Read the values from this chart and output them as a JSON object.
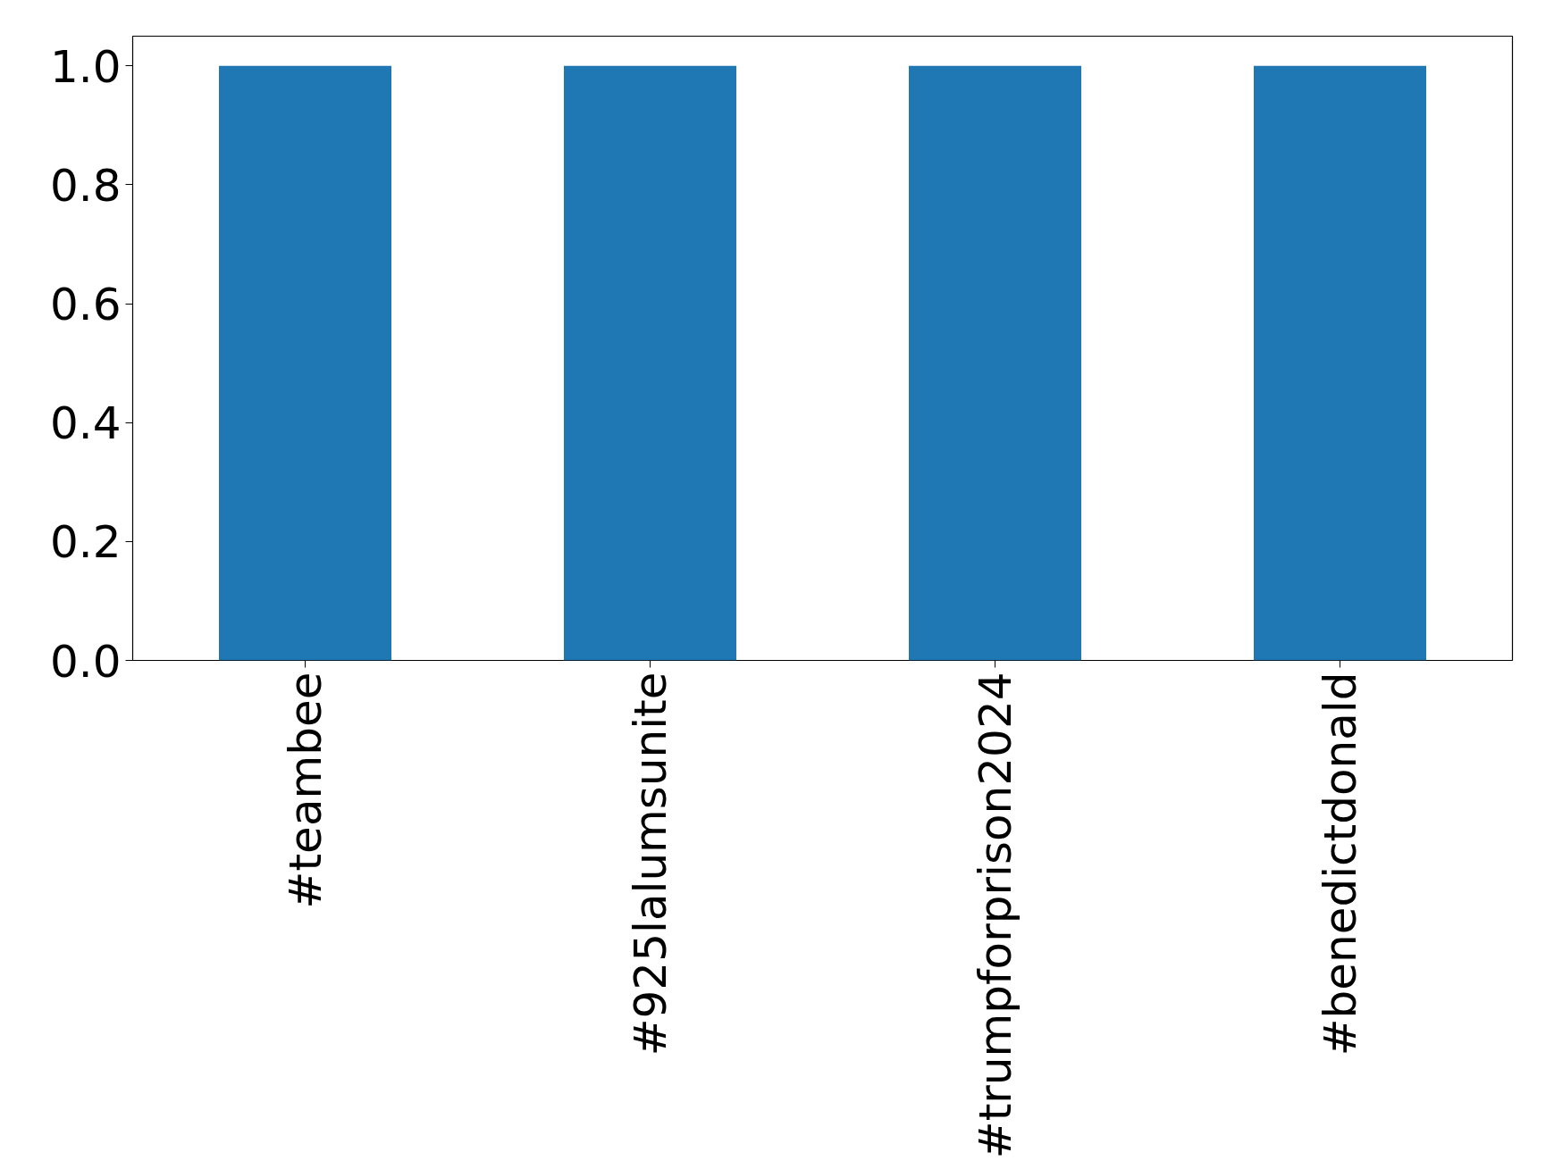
{
  "chart_data": {
    "type": "bar",
    "categories": [
      "#teambee",
      "#925lalumsunite",
      "#trumpforprison2024",
      "#benedictdonald"
    ],
    "values": [
      1,
      1,
      1,
      1
    ],
    "color": "#1f77b4",
    "ylim": [
      0,
      1.05
    ],
    "yticks": [
      {
        "value": 0,
        "label": "0.0"
      },
      {
        "value": 0.2,
        "label": "0.2"
      },
      {
        "value": 0.4,
        "label": "0.4"
      },
      {
        "value": 0.6,
        "label": "0.6"
      },
      {
        "value": 0.8,
        "label": "0.8"
      },
      {
        "value": 1.0,
        "label": "1.0"
      }
    ],
    "grid": false
  }
}
